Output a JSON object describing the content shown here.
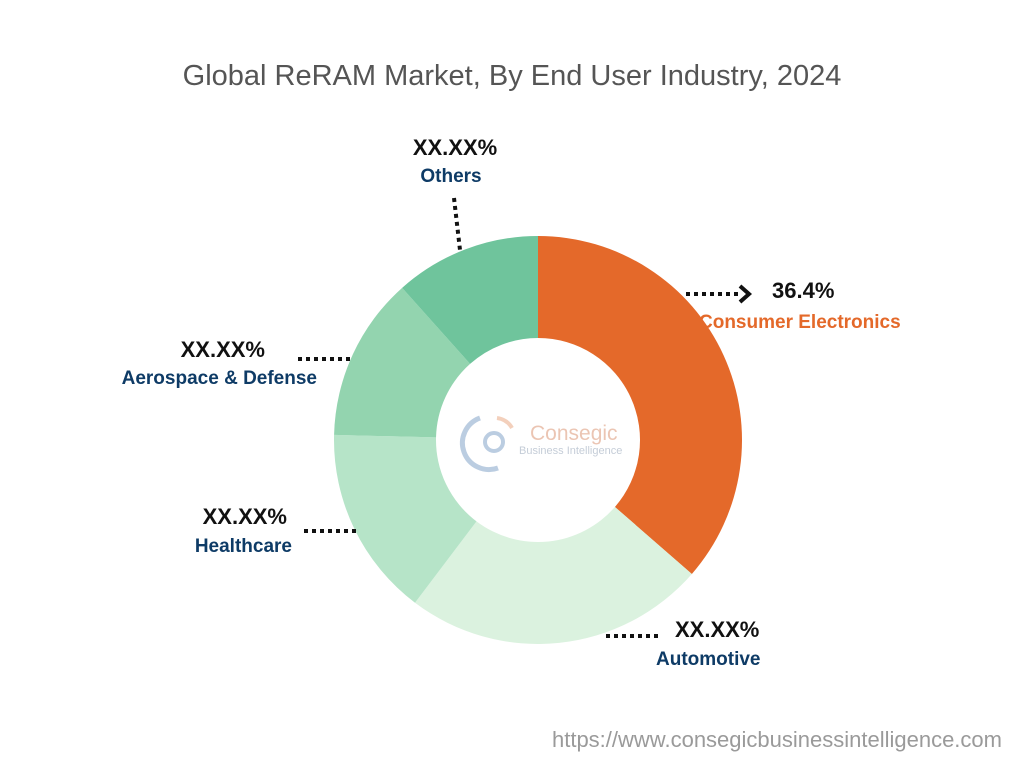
{
  "chart_data": {
    "type": "pie",
    "donut": true,
    "title": "Global ReRAM Market, By End User Industry, 2024",
    "categories": [
      "Consumer Electronics",
      "Automotive",
      "Healthcare",
      "Aerospace & Defense",
      "Others"
    ],
    "values": [
      36.4,
      23.9,
      15.1,
      13.0,
      11.6
    ],
    "labels": [
      "36.4%",
      "XX.XX%",
      "XX.XX%",
      "XX.XX%",
      "XX.XX%"
    ],
    "colors": [
      "#E4692A",
      "#DBF2DF",
      "#B6E4C8",
      "#93D4AF",
      "#6FC49C"
    ],
    "label_colors": [
      "#E4692A",
      "#0E3B66",
      "#0E3B66",
      "#0E3B66",
      "#0E3B66"
    ],
    "start_angle": "top",
    "direction": "clockwise"
  },
  "watermark": {
    "brand": "Consegic",
    "sub": "Business Intelligence"
  },
  "footer": {
    "url": "https://www.consegicbusinessintelligence.com"
  }
}
